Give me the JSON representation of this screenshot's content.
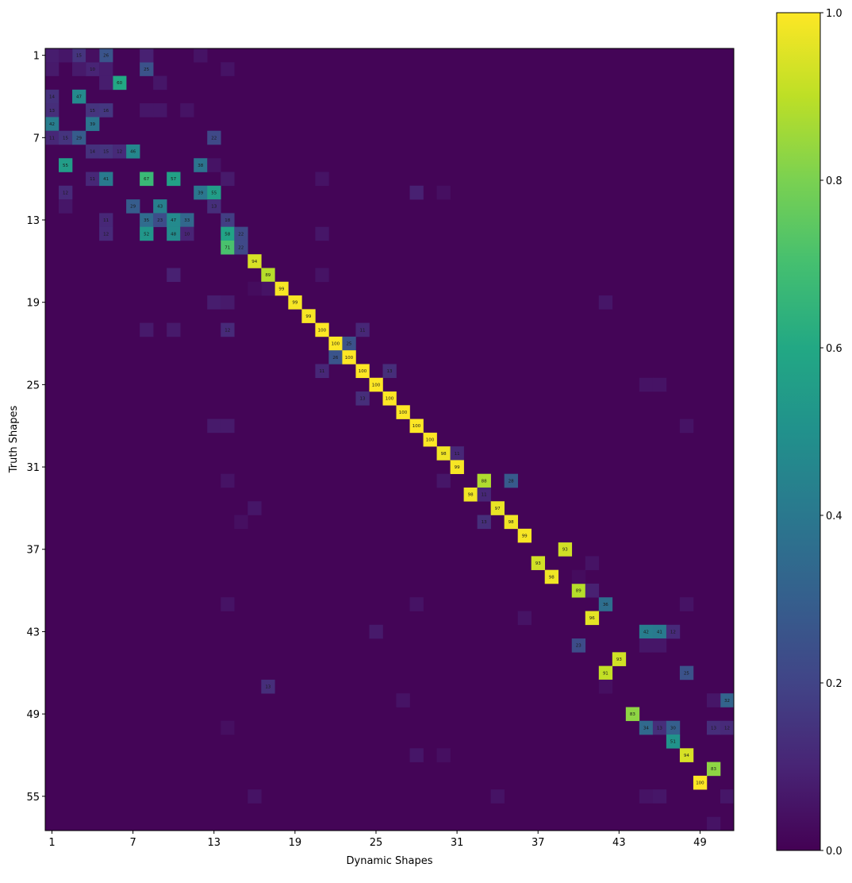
{
  "chart_data": {
    "type": "heatmap",
    "title": "",
    "xlabel": "Dynamic Shapes",
    "ylabel": "Truth Shapes",
    "n_rows": 57,
    "n_cols": 51,
    "x_ticks": [
      1,
      7,
      13,
      19,
      25,
      31,
      37,
      43,
      49
    ],
    "y_ticks": [
      1,
      7,
      13,
      19,
      25,
      31,
      37,
      43,
      49,
      55
    ],
    "colormap": "viridis",
    "value_scale": 100,
    "label_threshold": 10,
    "colorbar": {
      "range": [
        0.0,
        1.0
      ],
      "ticks": [
        "0.0",
        "0.2",
        "0.4",
        "0.6",
        "0.8",
        "1.0"
      ]
    },
    "cells": [
      [
        1,
        3,
        15
      ],
      [
        1,
        5,
        26
      ],
      [
        2,
        4,
        10
      ],
      [
        2,
        8,
        25
      ],
      [
        3,
        6,
        60
      ],
      [
        4,
        1,
        14
      ],
      [
        4,
        3,
        47
      ],
      [
        5,
        1,
        13
      ],
      [
        5,
        4,
        15
      ],
      [
        5,
        5,
        16
      ],
      [
        6,
        1,
        42
      ],
      [
        6,
        4,
        39
      ],
      [
        7,
        1,
        11
      ],
      [
        7,
        2,
        15
      ],
      [
        7,
        3,
        29
      ],
      [
        7,
        13,
        22
      ],
      [
        8,
        4,
        14
      ],
      [
        8,
        5,
        15
      ],
      [
        8,
        6,
        12
      ],
      [
        8,
        7,
        46
      ],
      [
        9,
        2,
        55
      ],
      [
        9,
        12,
        38
      ],
      [
        10,
        4,
        11
      ],
      [
        10,
        5,
        41
      ],
      [
        10,
        8,
        67
      ],
      [
        10,
        10,
        57
      ],
      [
        11,
        2,
        12
      ],
      [
        11,
        12,
        39
      ],
      [
        11,
        13,
        55
      ],
      [
        12,
        7,
        29
      ],
      [
        12,
        9,
        43
      ],
      [
        12,
        13,
        13
      ],
      [
        13,
        5,
        11
      ],
      [
        13,
        8,
        35
      ],
      [
        13,
        9,
        23
      ],
      [
        13,
        10,
        47
      ],
      [
        13,
        11,
        33
      ],
      [
        13,
        14,
        18
      ],
      [
        14,
        5,
        12
      ],
      [
        14,
        8,
        52
      ],
      [
        14,
        10,
        48
      ],
      [
        14,
        11,
        10
      ],
      [
        14,
        14,
        58
      ],
      [
        14,
        15,
        22
      ],
      [
        15,
        14,
        71
      ],
      [
        15,
        15,
        22
      ],
      [
        16,
        16,
        94
      ],
      [
        17,
        17,
        89
      ],
      [
        18,
        18,
        99
      ],
      [
        19,
        19,
        99
      ],
      [
        20,
        20,
        99
      ],
      [
        21,
        21,
        100
      ],
      [
        21,
        14,
        12
      ],
      [
        21,
        24,
        11
      ],
      [
        22,
        22,
        100
      ],
      [
        22,
        23,
        25
      ],
      [
        23,
        22,
        26
      ],
      [
        23,
        23,
        100
      ],
      [
        24,
        24,
        100
      ],
      [
        24,
        21,
        11
      ],
      [
        24,
        26,
        13
      ],
      [
        25,
        25,
        100
      ],
      [
        26,
        26,
        100
      ],
      [
        26,
        24,
        13
      ],
      [
        27,
        27,
        100
      ],
      [
        28,
        28,
        100
      ],
      [
        29,
        29,
        100
      ],
      [
        30,
        30,
        98
      ],
      [
        30,
        31,
        11
      ],
      [
        31,
        31,
        99
      ],
      [
        32,
        33,
        88
      ],
      [
        32,
        35,
        28
      ],
      [
        33,
        32,
        98
      ],
      [
        33,
        33,
        11
      ],
      [
        34,
        34,
        97
      ],
      [
        35,
        33,
        13
      ],
      [
        35,
        35,
        98
      ],
      [
        36,
        36,
        99
      ],
      [
        37,
        39,
        93
      ],
      [
        38,
        37,
        93
      ],
      [
        39,
        38,
        98
      ],
      [
        40,
        40,
        89
      ],
      [
        41,
        42,
        36
      ],
      [
        42,
        41,
        96
      ],
      [
        43,
        45,
        42
      ],
      [
        43,
        46,
        41
      ],
      [
        43,
        47,
        12
      ],
      [
        44,
        40,
        23
      ],
      [
        45,
        43,
        93
      ],
      [
        46,
        42,
        91
      ],
      [
        46,
        48,
        25
      ],
      [
        47,
        17,
        13
      ],
      [
        48,
        51,
        32
      ],
      [
        49,
        44,
        83
      ],
      [
        50,
        45,
        34
      ],
      [
        50,
        46,
        13
      ],
      [
        50,
        47,
        30
      ],
      [
        50,
        50,
        13
      ],
      [
        50,
        51,
        12
      ],
      [
        51,
        47,
        51
      ],
      [
        52,
        48,
        94
      ],
      [
        53,
        50,
        83
      ],
      [
        54,
        49,
        100
      ],
      [
        1,
        1,
        8
      ],
      [
        1,
        2,
        6
      ],
      [
        1,
        4,
        4
      ],
      [
        1,
        8,
        9
      ],
      [
        1,
        12,
        5
      ],
      [
        2,
        1,
        7
      ],
      [
        2,
        3,
        7
      ],
      [
        2,
        5,
        8
      ],
      [
        2,
        14,
        5
      ],
      [
        3,
        5,
        8
      ],
      [
        3,
        9,
        6
      ],
      [
        5,
        8,
        6
      ],
      [
        5,
        9,
        6
      ],
      [
        5,
        11,
        5
      ],
      [
        9,
        13,
        5
      ],
      [
        10,
        14,
        7
      ],
      [
        10,
        21,
        5
      ],
      [
        11,
        28,
        9
      ],
      [
        11,
        30,
        4
      ],
      [
        12,
        2,
        6
      ],
      [
        14,
        21,
        6
      ],
      [
        17,
        10,
        9
      ],
      [
        17,
        21,
        5
      ],
      [
        18,
        17,
        5
      ],
      [
        18,
        16,
        3
      ],
      [
        19,
        13,
        8
      ],
      [
        19,
        14,
        7
      ],
      [
        19,
        42,
        6
      ],
      [
        21,
        8,
        7
      ],
      [
        21,
        10,
        7
      ],
      [
        28,
        13,
        7
      ],
      [
        28,
        14,
        7
      ],
      [
        28,
        48,
        5
      ],
      [
        32,
        14,
        5
      ],
      [
        32,
        30,
        6
      ],
      [
        34,
        16,
        6
      ],
      [
        35,
        15,
        4
      ],
      [
        41,
        14,
        5
      ],
      [
        41,
        28,
        5
      ],
      [
        41,
        48,
        5
      ],
      [
        43,
        25,
        7
      ],
      [
        44,
        45,
        6
      ],
      [
        44,
        46,
        6
      ],
      [
        42,
        36,
        5
      ],
      [
        47,
        42,
        4
      ],
      [
        48,
        27,
        5
      ],
      [
        48,
        50,
        6
      ],
      [
        50,
        14,
        4
      ],
      [
        52,
        28,
        6
      ],
      [
        52,
        30,
        4
      ],
      [
        55,
        16,
        5
      ],
      [
        55,
        34,
        5
      ],
      [
        55,
        45,
        5
      ],
      [
        55,
        46,
        6
      ],
      [
        55,
        51,
        6
      ],
      [
        57,
        50,
        5
      ],
      [
        25,
        45,
        5
      ],
      [
        25,
        46,
        5
      ],
      [
        40,
        41,
        9
      ],
      [
        38,
        41,
        5
      ],
      [
        39,
        40,
        3
      ]
    ]
  }
}
